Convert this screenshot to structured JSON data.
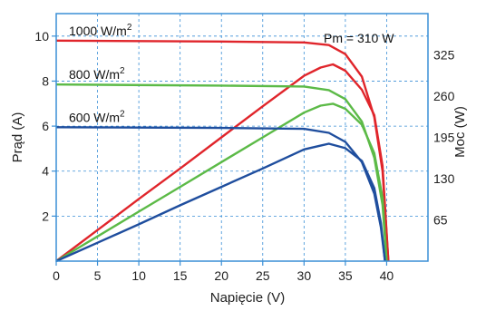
{
  "chart_data": {
    "type": "line",
    "xlabel": "Napięcie (V)",
    "ylabel": "Prąd (A)",
    "y2label": "Moc (W)",
    "annotation": "Pm = 310 W",
    "xlim": [
      0,
      45
    ],
    "ylim": [
      0,
      11
    ],
    "y2lim": [
      0,
      390
    ],
    "xticks": [
      "0",
      "5",
      "10",
      "15",
      "20",
      "25",
      "30",
      "35",
      "40"
    ],
    "yticks": [
      "2",
      "4",
      "6",
      "8",
      "10"
    ],
    "y2ticks": [
      "65",
      "130",
      "195",
      "260",
      "325"
    ],
    "frame_color": "#3a8fd6",
    "series": [
      {
        "name": "1000 W/m²",
        "label_main": "1000 W/m",
        "label_sup": "2",
        "color": "#e0252b",
        "current": [
          [
            0,
            9.8
          ],
          [
            20,
            9.76
          ],
          [
            30,
            9.72
          ],
          [
            33,
            9.6
          ],
          [
            35,
            9.2
          ],
          [
            37,
            8.2
          ],
          [
            38.5,
            6.4
          ],
          [
            39.5,
            4.0
          ],
          [
            40.2,
            0
          ]
        ],
        "power": [
          [
            0,
            0
          ],
          [
            5,
            49
          ],
          [
            10,
            98
          ],
          [
            15,
            146
          ],
          [
            20,
            195
          ],
          [
            25,
            244
          ],
          [
            30,
            292
          ],
          [
            32,
            305
          ],
          [
            33.5,
            310
          ],
          [
            35,
            300
          ],
          [
            37,
            270
          ],
          [
            38.5,
            230
          ],
          [
            39.5,
            150
          ],
          [
            40.2,
            0
          ]
        ]
      },
      {
        "name": "800 W/m²",
        "label_main": "800 W/m",
        "label_sup": "2",
        "color": "#5cba47",
        "current": [
          [
            0,
            7.85
          ],
          [
            20,
            7.8
          ],
          [
            30,
            7.76
          ],
          [
            33,
            7.6
          ],
          [
            35,
            7.2
          ],
          [
            37,
            6.2
          ],
          [
            38.5,
            4.6
          ],
          [
            39.5,
            2.5
          ],
          [
            40,
            0
          ]
        ],
        "power": [
          [
            0,
            0
          ],
          [
            5,
            39
          ],
          [
            10,
            78
          ],
          [
            15,
            117
          ],
          [
            20,
            156
          ],
          [
            25,
            195
          ],
          [
            30,
            234
          ],
          [
            32,
            245
          ],
          [
            33.5,
            248
          ],
          [
            35,
            240
          ],
          [
            37,
            215
          ],
          [
            38.5,
            170
          ],
          [
            39.5,
            100
          ],
          [
            40,
            0
          ]
        ]
      },
      {
        "name": "600 W/m²",
        "label_main": "600 W/m",
        "label_sup": "2",
        "color": "#1f4e9e",
        "current": [
          [
            0,
            5.95
          ],
          [
            20,
            5.92
          ],
          [
            30,
            5.88
          ],
          [
            33,
            5.7
          ],
          [
            35,
            5.3
          ],
          [
            37,
            4.4
          ],
          [
            38.5,
            3.0
          ],
          [
            39.3,
            1.5
          ],
          [
            39.8,
            0
          ]
        ],
        "power": [
          [
            0,
            0
          ],
          [
            5,
            29
          ],
          [
            10,
            58
          ],
          [
            15,
            88
          ],
          [
            20,
            117
          ],
          [
            25,
            146
          ],
          [
            30,
            176
          ],
          [
            32,
            182
          ],
          [
            33,
            185
          ],
          [
            35,
            178
          ],
          [
            37,
            158
          ],
          [
            38.5,
            115
          ],
          [
            39.3,
            60
          ],
          [
            39.8,
            0
          ]
        ]
      }
    ]
  }
}
